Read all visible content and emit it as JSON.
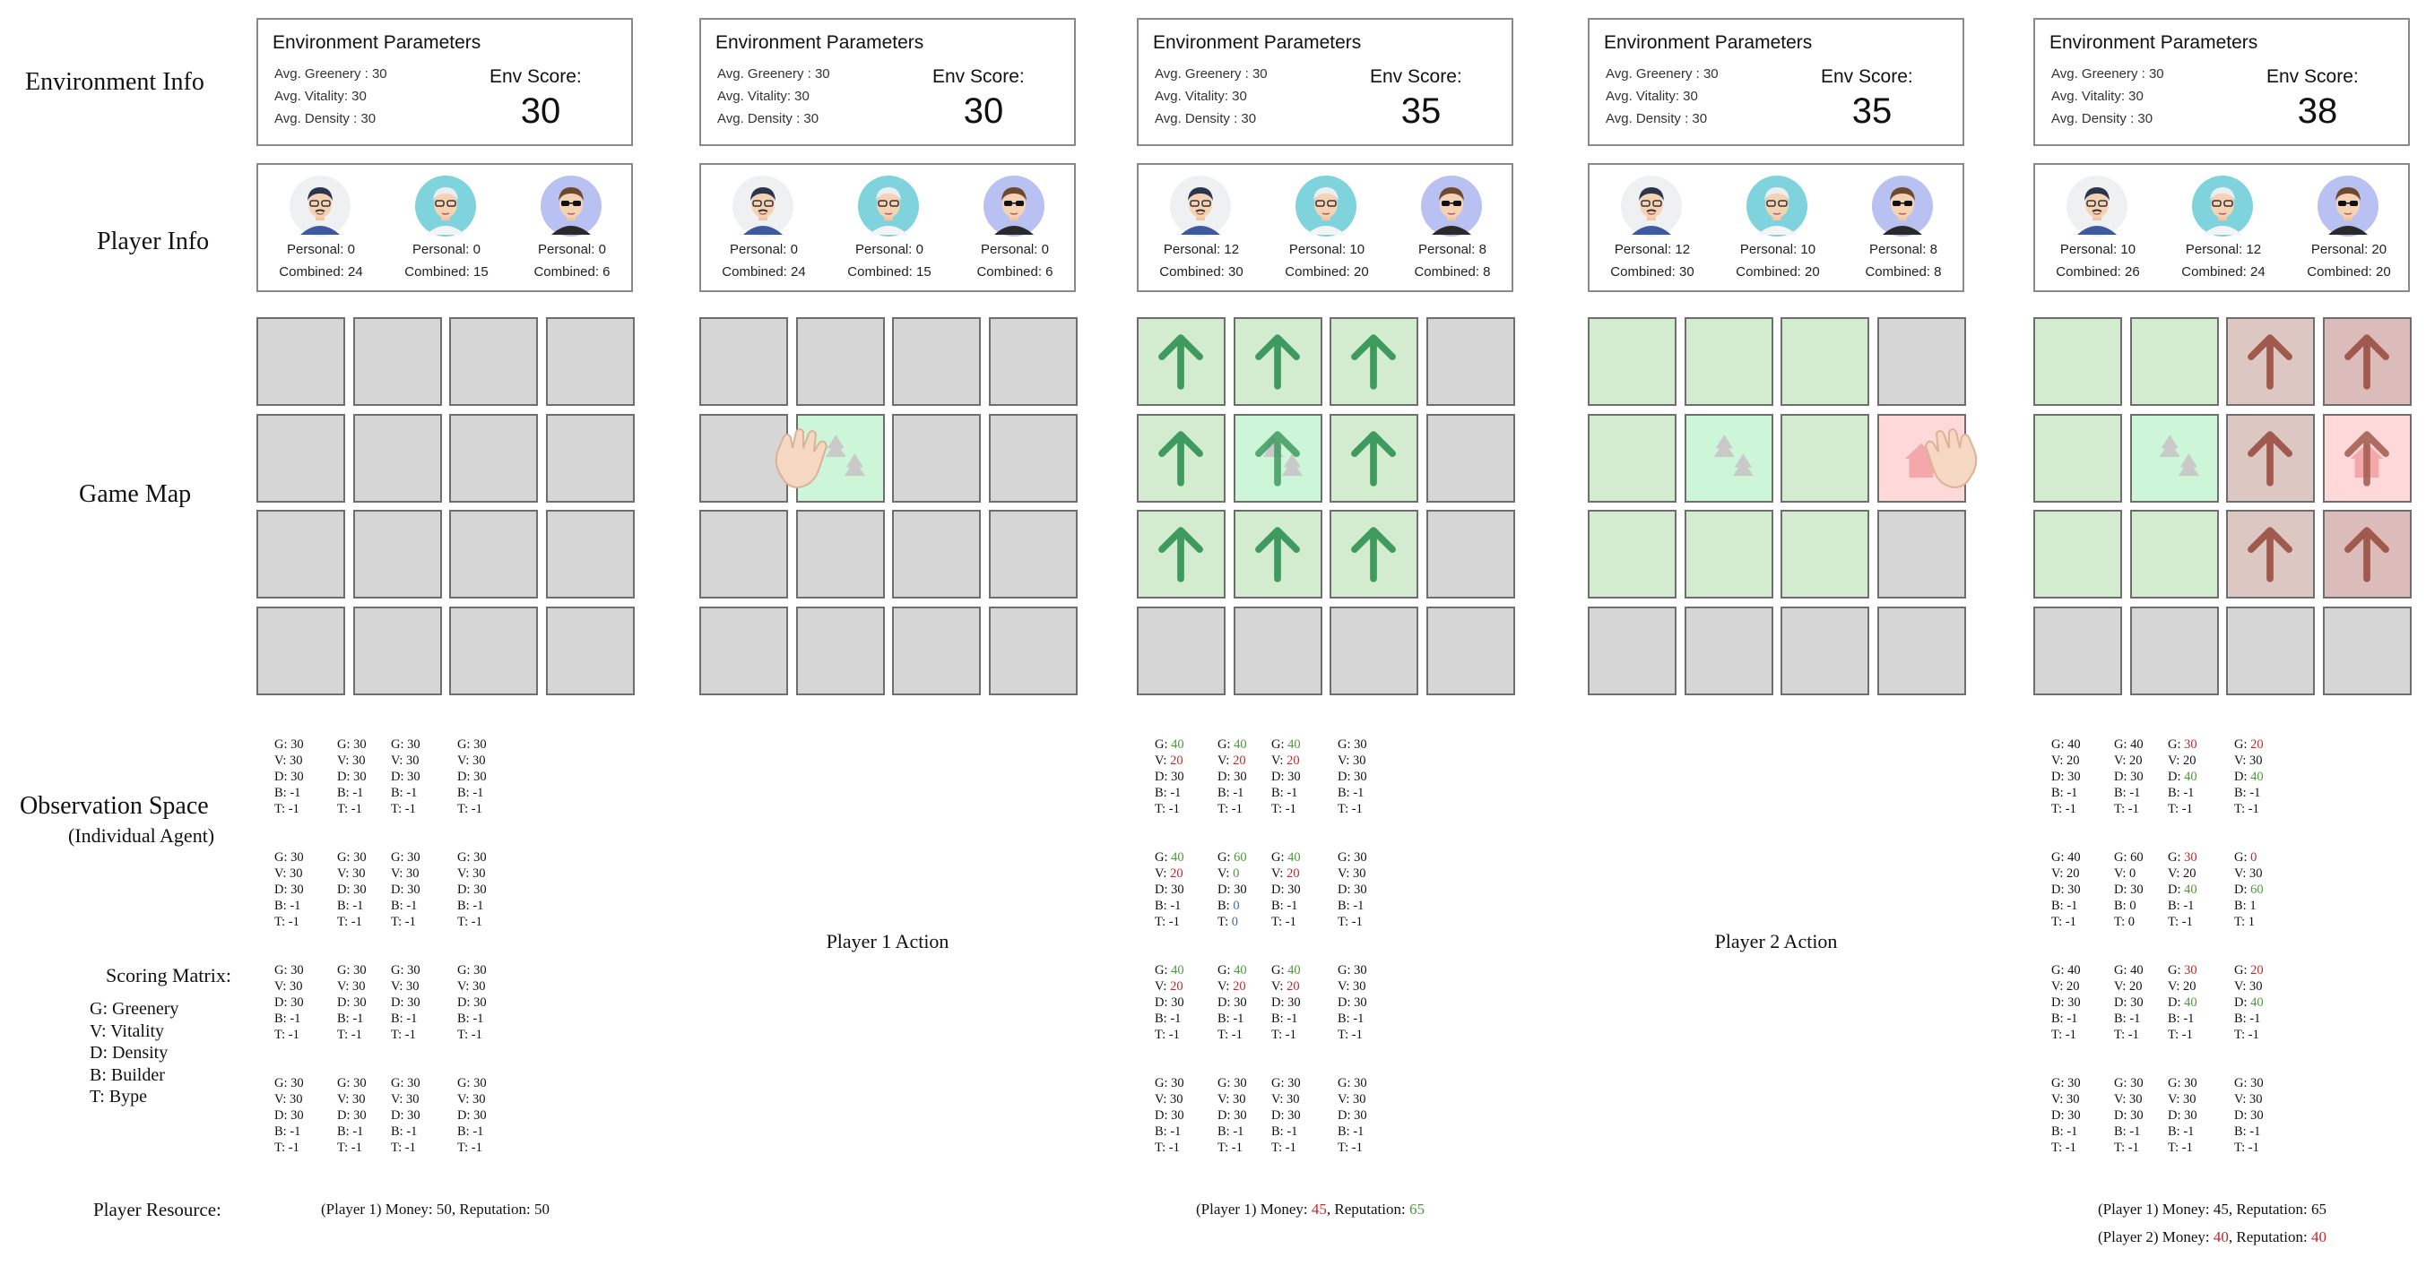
{
  "row_labels": {
    "environment": "Environment Info",
    "player": "Player Info",
    "map": "Game Map",
    "observation": "Observation Space",
    "observation_sub": "(Individual Agent)",
    "scoring": "Scoring Matrix:",
    "legend": [
      "G: Greenery",
      "V: Vitality",
      "D: Density",
      "B: Builder",
      "T: Bype"
    ],
    "resource": "Player Resource:"
  },
  "env_panel": {
    "title": "Environment Parameters",
    "greenery_label": "Avg. Greenery : 30",
    "vitality_label": "Avg. Vitality: 30",
    "density_label": "Avg. Density : 30",
    "score_label": "Env Score:"
  },
  "actions": [
    "Player 1 Action",
    "Player 2 Action"
  ],
  "colors": {
    "grey_cell": "#d6d6d6",
    "green_cell": "#d3ecd0",
    "light_green_cell": "#cdf5d8",
    "brown_cell": "#dcc7c2",
    "pink_cell": "#ffd9da",
    "green_arrow": "#3f9a5f",
    "brown_arrow": "#a0594d",
    "highlight": "#4a9a3a",
    "warning": "#c0282b"
  },
  "stages": [
    {
      "env_score": "30",
      "players": [
        {
          "personal": "Personal: 0",
          "combined": "Combined: 24",
          "avatar": "young-man-glasses"
        },
        {
          "personal": "Personal: 0",
          "combined": "Combined: 15",
          "avatar": "elderly-woman"
        },
        {
          "personal": "Personal: 0",
          "combined": "Combined: 6",
          "avatar": "man-sunglasses"
        }
      ],
      "map": [
        [
          "grey",
          "grey",
          "grey",
          "grey"
        ],
        [
          "grey",
          "grey",
          "grey",
          "grey"
        ],
        [
          "grey",
          "grey",
          "grey",
          "grey"
        ],
        [
          "grey",
          "grey",
          "grey",
          "grey"
        ]
      ],
      "observation": "default",
      "resource": [
        {
          "text": "(Player 1) Money: 50, Reputation: 50"
        }
      ]
    },
    {
      "env_score": "30",
      "players": [
        {
          "personal": "Personal: 0",
          "combined": "Combined: 24",
          "avatar": "young-man-glasses"
        },
        {
          "personal": "Personal: 0",
          "combined": "Combined: 15",
          "avatar": "elderly-woman"
        },
        {
          "personal": "Personal: 0",
          "combined": "Combined: 6",
          "avatar": "man-sunglasses"
        }
      ],
      "map": [
        [
          "grey",
          "grey",
          "grey",
          "grey"
        ],
        [
          "grey",
          "lightgreen-tree",
          "grey",
          "grey"
        ],
        [
          "grey",
          "grey",
          "grey",
          "grey"
        ],
        [
          "grey",
          "grey",
          "grey",
          "grey"
        ]
      ],
      "hand": {
        "row": 1,
        "col": 0
      },
      "observation": null,
      "action": 0
    },
    {
      "env_score": "35",
      "players": [
        {
          "personal": "Personal: 12",
          "combined": "Combined: 30",
          "avatar": "young-man-glasses"
        },
        {
          "personal": "Personal: 10",
          "combined": "Combined: 20",
          "avatar": "elderly-woman"
        },
        {
          "personal": "Personal: 8",
          "combined": "Combined: 8",
          "avatar": "man-sunglasses"
        }
      ],
      "map": [
        [
          "green-up",
          "green-up",
          "green-up",
          "grey"
        ],
        [
          "green-up",
          "lightgreen-tree-up",
          "green-up",
          "grey"
        ],
        [
          "green-up",
          "green-up",
          "green-up",
          "grey"
        ],
        [
          "grey",
          "grey",
          "grey",
          "grey"
        ]
      ],
      "observation": [
        [
          [
            [
              "G: ",
              "40",
              "hi"
            ],
            [
              "V: ",
              "20",
              "lo"
            ],
            [
              "D: 30"
            ],
            [
              "B: -1"
            ],
            [
              "T: -1"
            ]
          ],
          [
            [
              "G: ",
              "40",
              "hi"
            ],
            [
              "V: ",
              "20",
              "lo"
            ],
            [
              "D: 30"
            ],
            [
              "B: -1"
            ],
            [
              "T: -1"
            ]
          ],
          [
            [
              "G: ",
              "40",
              "hi"
            ],
            [
              "V: ",
              "20",
              "lo"
            ],
            [
              "D: 30"
            ],
            [
              "B: -1"
            ],
            [
              "T: -1"
            ]
          ],
          [
            [
              "G: 30"
            ],
            [
              "V: 30"
            ],
            [
              "D: 30"
            ],
            [
              "B: -1"
            ],
            [
              "T: -1"
            ]
          ]
        ],
        [
          [
            [
              "G: ",
              "40",
              "hi"
            ],
            [
              "V: ",
              "20",
              "lo"
            ],
            [
              "D: 30"
            ],
            [
              "B: -1"
            ],
            [
              "T: -1"
            ]
          ],
          [
            [
              "G: ",
              "60",
              "hi"
            ],
            [
              "V: ",
              "0",
              "hi"
            ],
            [
              "D: 30"
            ],
            [
              "B: ",
              "0",
              "bl"
            ],
            [
              "T: ",
              "0",
              "bl"
            ]
          ],
          [
            [
              "G: ",
              "40",
              "hi"
            ],
            [
              "V: ",
              "20",
              "lo"
            ],
            [
              "D: 30"
            ],
            [
              "B: -1"
            ],
            [
              "T: -1"
            ]
          ],
          [
            [
              "G: 30"
            ],
            [
              "V: 30"
            ],
            [
              "D: 30"
            ],
            [
              "B: -1"
            ],
            [
              "T: -1"
            ]
          ]
        ],
        [
          [
            [
              "G: ",
              "40",
              "hi"
            ],
            [
              "V: ",
              "20",
              "lo"
            ],
            [
              "D: 30"
            ],
            [
              "B: -1"
            ],
            [
              "T: -1"
            ]
          ],
          [
            [
              "G: ",
              "40",
              "hi"
            ],
            [
              "V: ",
              "20",
              "lo"
            ],
            [
              "D: 30"
            ],
            [
              "B: -1"
            ],
            [
              "T: -1"
            ]
          ],
          [
            [
              "G: ",
              "40",
              "hi"
            ],
            [
              "V: ",
              "20",
              "lo"
            ],
            [
              "D: 30"
            ],
            [
              "B: -1"
            ],
            [
              "T: -1"
            ]
          ],
          [
            [
              "G: 30"
            ],
            [
              "V: 30"
            ],
            [
              "D: 30"
            ],
            [
              "B: -1"
            ],
            [
              "T: -1"
            ]
          ]
        ],
        "default"
      ],
      "resource": [
        {
          "parts": [
            [
              "(Player 1) Money: ",
              ""
            ],
            [
              "45",
              "lo"
            ],
            [
              ", Reputation: ",
              ""
            ],
            [
              "65",
              "hi"
            ]
          ]
        }
      ]
    },
    {
      "env_score": "35",
      "players": [
        {
          "personal": "Personal: 12",
          "combined": "Combined: 30",
          "avatar": "young-man-glasses"
        },
        {
          "personal": "Personal: 10",
          "combined": "Combined: 20",
          "avatar": "elderly-woman"
        },
        {
          "personal": "Personal: 8",
          "combined": "Combined: 8",
          "avatar": "man-sunglasses"
        }
      ],
      "map": [
        [
          "green",
          "green",
          "green",
          "grey"
        ],
        [
          "green",
          "lightgreen-tree",
          "green",
          "pink-house"
        ],
        [
          "green",
          "green",
          "green",
          "grey"
        ],
        [
          "grey",
          "grey",
          "grey",
          "grey"
        ]
      ],
      "hand": {
        "row": 1,
        "col": 3,
        "right": true
      },
      "observation": null,
      "action": 1
    },
    {
      "env_score": "38",
      "players": [
        {
          "personal": "Personal: 10",
          "combined": "Combined: 26",
          "avatar": "young-man-glasses"
        },
        {
          "personal": "Personal: 12",
          "combined": "Combined: 24",
          "avatar": "elderly-woman"
        },
        {
          "personal": "Personal: 20",
          "combined": "Combined: 20",
          "avatar": "man-sunglasses"
        }
      ],
      "map": [
        [
          "green",
          "green",
          "brown-up",
          "brownred-up"
        ],
        [
          "green",
          "lightgreen-tree",
          "brown-up",
          "pink-house-up"
        ],
        [
          "green",
          "green",
          "brown-up",
          "brownred-up"
        ],
        [
          "grey",
          "grey",
          "grey",
          "grey"
        ]
      ],
      "observation": [
        [
          [
            [
              "G: 40"
            ],
            [
              "V: 20"
            ],
            [
              "D: 30"
            ],
            [
              "B: -1"
            ],
            [
              "T: -1"
            ]
          ],
          [
            [
              "G: 40"
            ],
            [
              "V: 20"
            ],
            [
              "D: 30"
            ],
            [
              "B: -1"
            ],
            [
              "T: -1"
            ]
          ],
          [
            [
              "G: ",
              "30",
              "lo"
            ],
            [
              "V: 20"
            ],
            [
              "D: ",
              "40",
              "hi"
            ],
            [
              "B: -1"
            ],
            [
              "T: -1"
            ]
          ],
          [
            [
              "G: ",
              "20",
              "lo"
            ],
            [
              "V: 30"
            ],
            [
              "D: ",
              "40",
              "hi"
            ],
            [
              "B: -1"
            ],
            [
              "T: -1"
            ]
          ]
        ],
        [
          [
            [
              "G: 40"
            ],
            [
              "V: 20"
            ],
            [
              "D: 30"
            ],
            [
              "B: -1"
            ],
            [
              "T: -1"
            ]
          ],
          [
            [
              "G: 60"
            ],
            [
              "V: 0"
            ],
            [
              "D: 30"
            ],
            [
              "B: 0"
            ],
            [
              "T: 0"
            ]
          ],
          [
            [
              "G: ",
              "30",
              "lo"
            ],
            [
              "V: 20"
            ],
            [
              "D: ",
              "40",
              "hi"
            ],
            [
              "B: -1"
            ],
            [
              "T: -1"
            ]
          ],
          [
            [
              "G: ",
              "0",
              "lo"
            ],
            [
              "V: 30"
            ],
            [
              "D: ",
              "60",
              "hi"
            ],
            [
              "B: 1"
            ],
            [
              "T: 1"
            ]
          ]
        ],
        [
          [
            [
              "G: 40"
            ],
            [
              "V: 20"
            ],
            [
              "D: 30"
            ],
            [
              "B: -1"
            ],
            [
              "T: -1"
            ]
          ],
          [
            [
              "G: 40"
            ],
            [
              "V: 20"
            ],
            [
              "D: 30"
            ],
            [
              "B: -1"
            ],
            [
              "T: -1"
            ]
          ],
          [
            [
              "G: ",
              "30",
              "lo"
            ],
            [
              "V: 20"
            ],
            [
              "D: ",
              "40",
              "hi"
            ],
            [
              "B: -1"
            ],
            [
              "T: -1"
            ]
          ],
          [
            [
              "G: ",
              "20",
              "lo"
            ],
            [
              "V: 30"
            ],
            [
              "D: ",
              "40",
              "hi"
            ],
            [
              "B: -1"
            ],
            [
              "T: -1"
            ]
          ]
        ],
        "default"
      ],
      "resource": [
        {
          "text": "(Player 1) Money: 45, Reputation: 65"
        },
        {
          "parts": [
            [
              "(Player 2) Money: ",
              ""
            ],
            [
              "40",
              "lo"
            ],
            [
              ", Reputation: ",
              ""
            ],
            [
              "40",
              "lo"
            ]
          ]
        }
      ]
    }
  ]
}
